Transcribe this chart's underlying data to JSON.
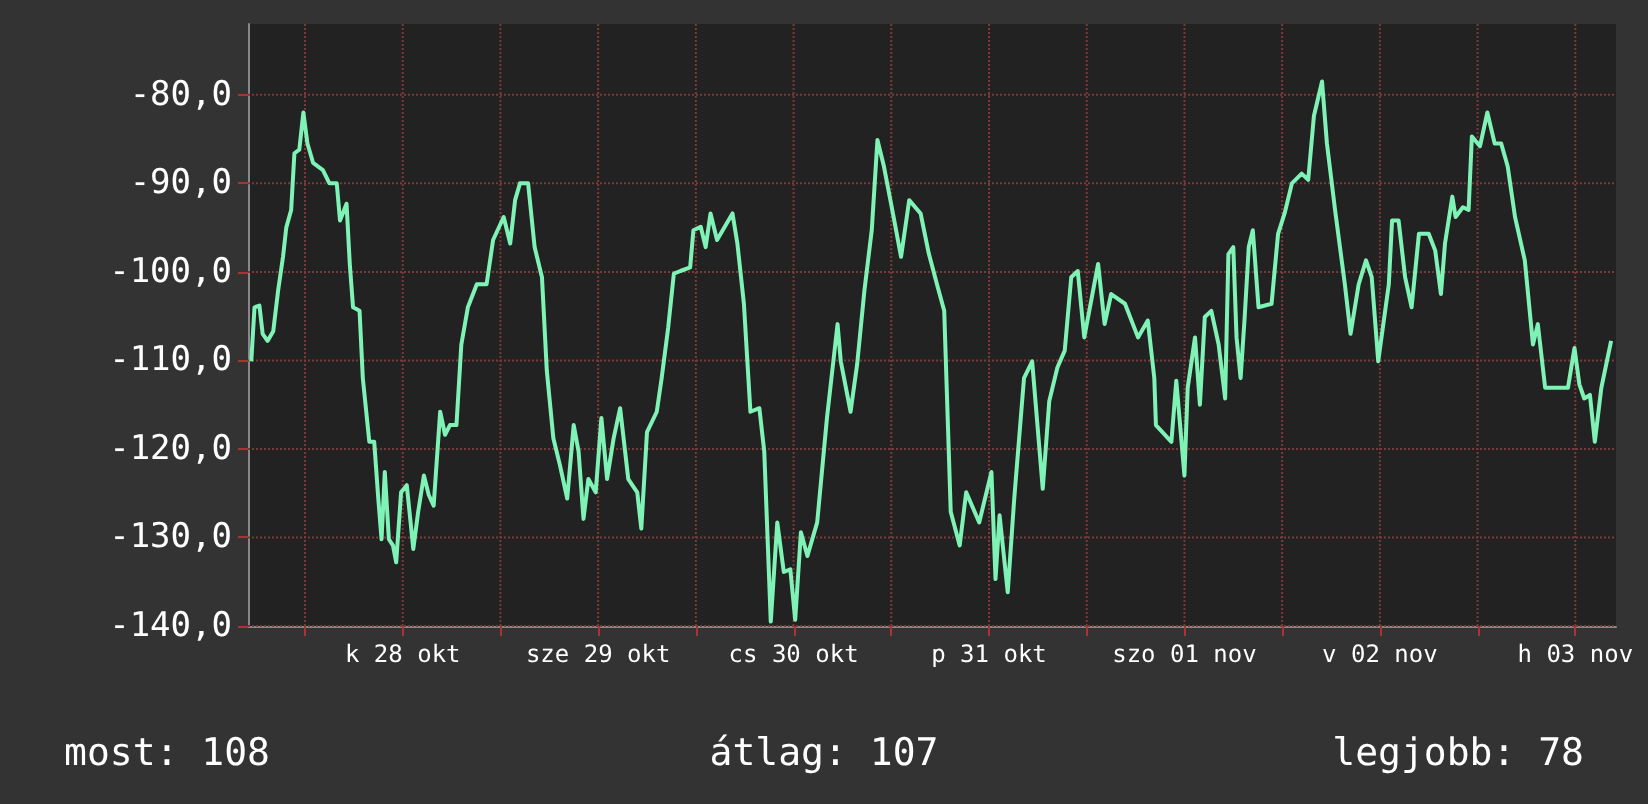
{
  "chart_data": {
    "type": "line",
    "x": [
      "--10-27T17:24",
      "--10-27T17:48",
      "--10-27T18:24",
      "--10-27T18:48",
      "--10-27T19:24",
      "--10-27T20:06",
      "--10-27T20:42",
      "--10-27T21:18",
      "--10-27T21:42",
      "--10-27T22:18",
      "--10-27T22:42",
      "--10-27T23:18",
      "--10-27T23:48",
      "--10-28T00:18",
      "--10-28T01:00",
      "--10-28T02:12",
      "--10-28T03:00",
      "--10-28T03:54",
      "--10-28T04:18",
      "--10-28T05:06",
      "--10-28T05:30",
      "--10-28T05:54",
      "--10-28T06:42",
      "--10-28T07:06",
      "--10-28T07:54",
      "--10-28T08:30",
      "--10-28T09:00",
      "--10-28T09:24",
      "--10-28T09:48",
      "--10-28T10:18",
      "--10-28T10:48",
      "--10-28T11:12",
      "--10-28T11:48",
      "--10-28T12:30",
      "--10-28T13:18",
      "--10-28T13:54",
      "--10-28T14:36",
      "--10-28T15:12",
      "--10-28T15:48",
      "--10-28T16:36",
      "--10-28T17:12",
      "--10-28T17:48",
      "--10-28T18:36",
      "--10-28T19:12",
      "--10-28T20:00",
      "--10-28T21:06",
      "--10-28T22:18",
      "--10-28T23:06",
      "--10-29T00:24",
      "--10-29T01:12",
      "--10-29T01:48",
      "--10-29T02:24",
      "--10-29T03:24",
      "--10-29T04:12",
      "--10-29T05:06",
      "--10-29T05:42",
      "--10-29T06:30",
      "--10-29T07:18",
      "--10-29T08:12",
      "--10-29T09:00",
      "--10-29T09:36",
      "--10-29T10:12",
      "--10-29T10:48",
      "--10-29T11:42",
      "--10-29T12:24",
      "--10-29T13:06",
      "--10-29T13:54",
      "--10-29T14:42",
      "--10-29T15:42",
      "--10-29T16:48",
      "--10-29T17:18",
      "--10-29T18:00",
      "--10-29T19:12",
      "--10-29T19:48",
      "--10-29T20:36",
      "--10-29T21:18",
      "--10-29T22:06",
      "--10-29T23:18",
      "--10-29T23:42",
      "--10-30T00:36",
      "--10-30T01:12",
      "--10-30T01:48",
      "--10-30T02:36",
      "--10-30T04:30",
      "--10-30T05:06",
      "--10-30T05:54",
      "--10-30T06:42",
      "--10-30T07:48",
      "--10-30T08:24",
      "--10-30T09:12",
      "--10-30T10:00",
      "--10-30T10:48",
      "--10-30T11:36",
      "--10-30T12:12",
      "--10-30T12:54",
      "--10-30T13:42",
      "--10-30T14:54",
      "--10-30T16:06",
      "--10-30T17:24",
      "--10-30T17:48",
      "--10-30T19:00",
      "--10-30T19:48",
      "--10-30T20:42",
      "--10-30T21:36",
      "--10-30T22:18",
      "--10-30T23:06",
      "--10-31T00:12",
      "--10-31T01:12",
      "--10-31T02:12",
      "--10-31T03:36",
      "--10-31T04:36",
      "--10-31T05:42",
      "--10-31T06:30",
      "--10-31T07:18",
      "--10-31T08:24",
      "--10-31T09:12",
      "--10-31T10:48",
      "--10-31T12:18",
      "--10-31T12:48",
      "--10-31T13:18",
      "--10-31T14:18",
      "--10-31T15:06",
      "--10-31T16:18",
      "--10-31T17:18",
      "--10-31T18:36",
      "--10-31T19:24",
      "--10-31T20:24",
      "--10-31T21:18",
      "--10-31T22:06",
      "--10-31T22:54",
      "--10-31T23:42",
      "--11-01T01:24",
      "--11-01T02:12",
      "--11-01T03:00",
      "--11-01T04:42",
      "--11-01T06:18",
      "--11-01T07:30",
      "--11-01T08:18",
      "--11-01T08:30",
      "--11-01T10:24",
      "--11-01T11:00",
      "--11-01T12:00",
      "--11-01T12:24",
      "--11-01T13:18",
      "--11-01T13:54",
      "--11-01T14:30",
      "--11-01T15:18",
      "--11-01T16:12",
      "--11-01T17:00",
      "--11-01T17:24",
      "--11-01T18:00",
      "--11-01T18:24",
      "--11-01T18:54",
      "--11-01T19:24",
      "--11-01T19:54",
      "--11-01T20:24",
      "--11-01T21:06",
      "--11-01T22:42",
      "--11-01T23:30",
      "--11-02T00:18",
      "--11-02T01:12",
      "--11-02T02:24",
      "--11-02T03:12",
      "--11-02T03:54",
      "--11-02T04:54",
      "--11-02T05:30",
      "--11-02T06:30",
      "--11-02T07:42",
      "--11-02T08:24",
      "--11-02T09:24",
      "--11-02T10:18",
      "--11-02T11:00",
      "--11-02T11:48",
      "--11-02T13:06",
      "--11-02T13:30",
      "--11-02T14:18",
      "--11-02T15:06",
      "--11-02T15:54",
      "--11-02T16:48",
      "--11-02T18:00",
      "--11-02T18:48",
      "--11-02T19:30",
      "--11-02T20:00",
      "--11-02T20:54",
      "--11-02T21:18",
      "--11-02T22:12",
      "--11-02T22:54",
      "--11-02T23:18",
      "--11-03T00:18",
      "--11-03T01:12",
      "--11-03T02:06",
      "--11-03T02:54",
      "--11-03T03:42",
      "--11-03T04:36",
      "--11-03T05:48",
      "--11-03T06:48",
      "--11-03T07:24",
      "--11-03T08:18",
      "--11-03T09:54",
      "--11-03T11:06",
      "--11-03T11:54",
      "--11-03T12:30",
      "--11-03T13:06",
      "--11-03T13:48",
      "--11-03T14:24",
      "--11-03T15:12",
      "--11-03T16:24"
    ],
    "series": [
      {
        "color": "#7ff2b6",
        "values": [
          -110.1,
          -104,
          -103.8,
          -107,
          -107.8,
          -106.7,
          -102.1,
          -98.3,
          -95,
          -93,
          -86.6,
          -86.2,
          -82,
          -85.5,
          -87.7,
          -88.5,
          -90,
          -90,
          -94.2,
          -92.3,
          -99.1,
          -104,
          -104.4,
          -112,
          -119.2,
          -119.2,
          -125.6,
          -130.2,
          -122.6,
          -130.2,
          -130.9,
          -132.8,
          -124.9,
          -124.1,
          -131.3,
          -127.1,
          -123,
          -125.2,
          -126.4,
          -115.8,
          -118.4,
          -117.3,
          -117.3,
          -108.2,
          -104,
          -101.4,
          -101.4,
          -96.4,
          -93.8,
          -96.8,
          -91.9,
          -90,
          -90,
          -97.2,
          -100.6,
          -111.2,
          -118.8,
          -121.8,
          -125.6,
          -117.3,
          -120.3,
          -127.9,
          -123.4,
          -124.9,
          -116.5,
          -123.4,
          -118.8,
          -115.4,
          -123.4,
          -124.9,
          -129,
          -118.1,
          -115.8,
          -112,
          -106.3,
          -100.2,
          -99.9,
          -99.5,
          -95.3,
          -94.9,
          -97.2,
          -93.4,
          -96.4,
          -93.4,
          -96.8,
          -103.6,
          -115.8,
          -115.4,
          -120.3,
          -139.5,
          -128.3,
          -133.9,
          -133.6,
          -139.3,
          -129.4,
          -132.1,
          -128.3,
          -116.5,
          -105.9,
          -110.1,
          -115.8,
          -110.5,
          -102.1,
          -95.3,
          -85.1,
          -88.1,
          -93.4,
          -98.3,
          -91.9,
          -93.4,
          -97.9,
          -101.7,
          -104.4,
          -127.1,
          -130.9,
          -124.9,
          -128.3,
          -122.6,
          -134.7,
          -127.5,
          -136.2,
          -125.6,
          -112,
          -110.1,
          -124.5,
          -114.6,
          -110.8,
          -108.9,
          -100.6,
          -99.9,
          -107.4,
          -99.1,
          -105.9,
          -102.5,
          -103.6,
          -107.4,
          -105.5,
          -112,
          -117.3,
          -119.2,
          -112.3,
          -123,
          -113.1,
          -107.4,
          -115,
          -105.1,
          -104.4,
          -108.2,
          -114.3,
          -98,
          -97.2,
          -107.4,
          -112,
          -105.1,
          -97.2,
          -95.3,
          -104,
          -103.6,
          -95.7,
          -93.4,
          -90,
          -88.9,
          -89.6,
          -82.4,
          -78.5,
          -85.5,
          -93,
          -101.4,
          -107,
          -101.4,
          -98.7,
          -100.6,
          -110.1,
          -101.4,
          -94.2,
          -94.2,
          -100.6,
          -104,
          -95.7,
          -95.7,
          -97.6,
          -102.5,
          -96.8,
          -91.5,
          -93.8,
          -92.7,
          -93,
          -84.7,
          -85.8,
          -82,
          -85.5,
          -85.5,
          -88.1,
          -93.8,
          -98.7,
          -108.2,
          -105.9,
          -113.1,
          -113.1,
          -113.1,
          -108.6,
          -112.7,
          -114.3,
          -113.9,
          -119.2,
          -113.1,
          -107.8
        ]
      }
    ],
    "xlim": [
      "--10-27T17:00",
      "--11-03T17:00"
    ],
    "xticks": [
      {
        "value": "--10-28T00:00",
        "label": null
      },
      {
        "value": "--10-28T12:00",
        "label": "k 28 okt"
      },
      {
        "value": "--10-29T00:00",
        "label": null
      },
      {
        "value": "--10-29T12:00",
        "label": "sze 29 okt"
      },
      {
        "value": "--10-30T00:00",
        "label": null
      },
      {
        "value": "--10-30T12:00",
        "label": "cs 30 okt"
      },
      {
        "value": "--10-31T00:00",
        "label": null
      },
      {
        "value": "--10-31T12:00",
        "label": "p 31 okt"
      },
      {
        "value": "--11-01T00:00",
        "label": null
      },
      {
        "value": "--11-01T12:00",
        "label": "szo 01 nov"
      },
      {
        "value": "--11-02T00:00",
        "label": null
      },
      {
        "value": "--11-02T12:00",
        "label": "v 02 nov"
      },
      {
        "value": "--11-03T00:00",
        "label": null
      },
      {
        "value": "--11-03T12:00",
        "label": "h 03 nov"
      }
    ],
    "ylim": [
      -140,
      -72
    ],
    "yticks": [
      {
        "value": -140,
        "label": "-140,0"
      },
      {
        "value": -130,
        "label": "-130,0"
      },
      {
        "value": -120,
        "label": "-120,0"
      },
      {
        "value": -110,
        "label": "-110,0"
      },
      {
        "value": -100,
        "label": "-100,0"
      },
      {
        "value": -90,
        "label": "-90,0"
      },
      {
        "value": -80,
        "label": "-80,0"
      }
    ],
    "grid": true,
    "marker": "none",
    "line_style": "solid",
    "annotations": [
      "most: 108",
      "átlag: 107",
      "legjobb: 78"
    ]
  }
}
